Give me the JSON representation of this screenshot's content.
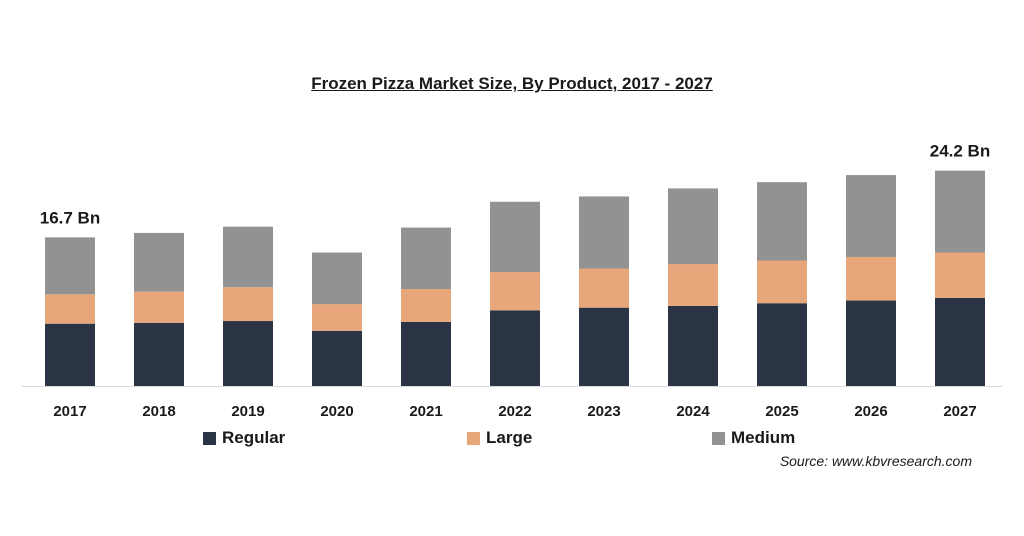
{
  "chart_data": {
    "type": "bar",
    "stacked": true,
    "title": "Frozen Pizza Market Size, By Product, 2017 - 2027",
    "categories": [
      "2017",
      "2018",
      "2019",
      "2020",
      "2021",
      "2022",
      "2023",
      "2024",
      "2025",
      "2026",
      "2027"
    ],
    "series": [
      {
        "name": "Regular",
        "color": "#2b3445",
        "values": [
          7.0,
          7.1,
          7.3,
          6.2,
          7.2,
          8.5,
          8.8,
          9.0,
          9.3,
          9.6,
          9.9
        ]
      },
      {
        "name": "Large",
        "color": "#e8a77a",
        "values": [
          3.3,
          3.5,
          3.8,
          3.0,
          3.7,
          4.3,
          4.4,
          4.7,
          4.8,
          4.9,
          5.1
        ]
      },
      {
        "name": "Medium",
        "color": "#929292",
        "values": [
          6.4,
          6.6,
          6.8,
          5.8,
          6.9,
          7.9,
          8.1,
          8.5,
          8.8,
          9.2,
          9.2
        ]
      }
    ],
    "data_labels": [
      {
        "category": "2017",
        "text": "16.7 Bn"
      },
      {
        "category": "2027",
        "text": "24.2 Bn"
      }
    ],
    "ylim": [
      0,
      26
    ],
    "legend_position": "bottom",
    "grid": false,
    "source": "Source: www.kbvresearch.com"
  }
}
